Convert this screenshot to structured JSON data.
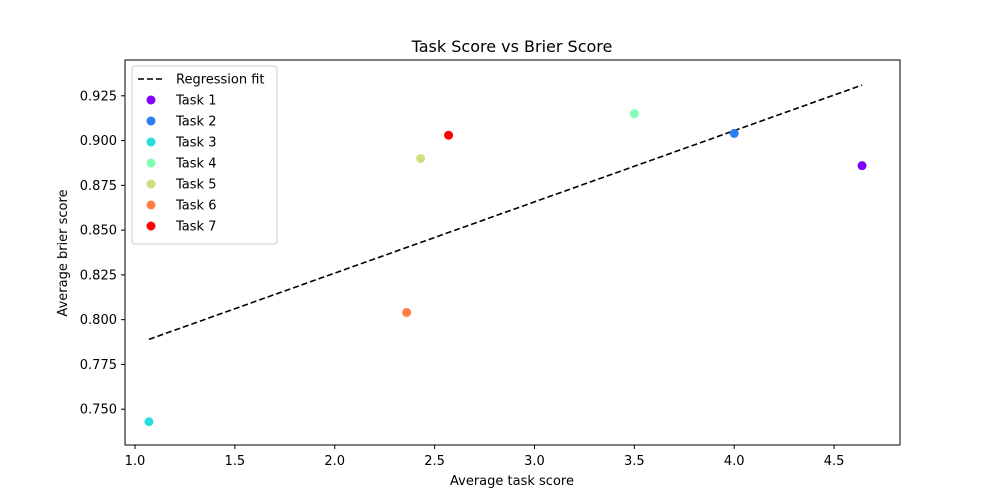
{
  "chart_data": {
    "type": "scatter",
    "title": "Task Score vs Brier Score",
    "xlabel": "Average task score",
    "ylabel": "Average brier score",
    "xlim": [
      0.95,
      4.83
    ],
    "ylim": [
      0.73,
      0.945
    ],
    "xticks": [
      1.0,
      1.5,
      2.0,
      2.5,
      3.0,
      3.5,
      4.0,
      4.5
    ],
    "xtick_labels": [
      "1.0",
      "1.5",
      "2.0",
      "2.5",
      "3.0",
      "3.5",
      "4.0",
      "4.5"
    ],
    "yticks": [
      0.75,
      0.775,
      0.8,
      0.825,
      0.85,
      0.875,
      0.9,
      0.925
    ],
    "ytick_labels": [
      "0.750",
      "0.775",
      "0.800",
      "0.825",
      "0.850",
      "0.875",
      "0.900",
      "0.925"
    ],
    "grid": false,
    "legend_position": "top-left",
    "series": [
      {
        "name": "Task 1",
        "color": "#8000ff",
        "x": [
          4.64
        ],
        "y": [
          0.886
        ]
      },
      {
        "name": "Task 2",
        "color": "#2c7ef7",
        "x": [
          4.0
        ],
        "y": [
          0.904
        ]
      },
      {
        "name": "Task 3",
        "color": "#2adddd",
        "x": [
          1.07
        ],
        "y": [
          0.743
        ]
      },
      {
        "name": "Task 4",
        "color": "#80ffb4",
        "x": [
          3.5
        ],
        "y": [
          0.915
        ]
      },
      {
        "name": "Task 5",
        "color": "#d4dd80",
        "x": [
          2.43
        ],
        "y": [
          0.89
        ]
      },
      {
        "name": "Task 6",
        "color": "#ff7e41",
        "x": [
          2.36
        ],
        "y": [
          0.804
        ]
      },
      {
        "name": "Task 7",
        "color": "#ff0000",
        "x": [
          2.57
        ],
        "y": [
          0.903
        ]
      }
    ],
    "regression": {
      "name": "Regression fit",
      "color": "#000000",
      "style": "dashed",
      "x": [
        1.07,
        4.64
      ],
      "y": [
        0.789,
        0.931
      ]
    }
  }
}
